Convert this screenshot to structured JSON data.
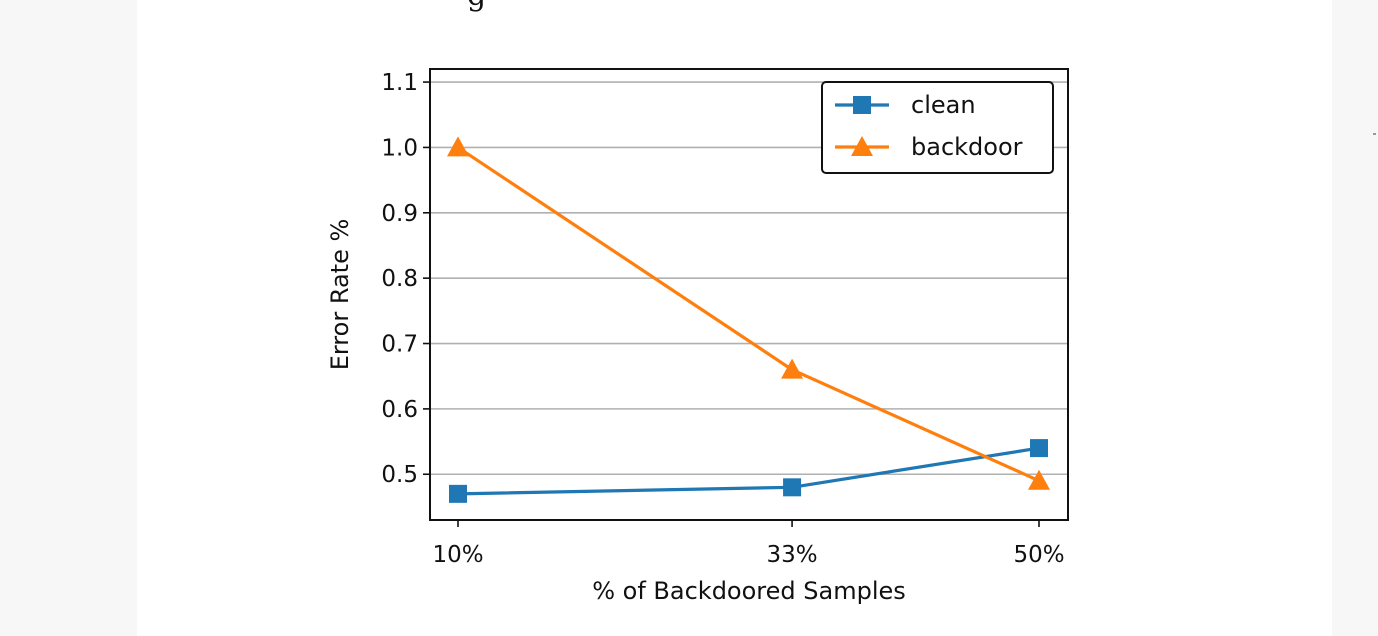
{
  "page": {
    "caption_fragment": "g",
    "colors": {
      "background": "#ffffff",
      "outer": "#f7f7f7",
      "grid": "#b0b0b0",
      "axis": "#111111"
    }
  },
  "chart_data": {
    "type": "line",
    "title": "",
    "xlabel": "% of Backdoored Samples",
    "ylabel": "Error Rate %",
    "categories": [
      "10%",
      "33%",
      "50%"
    ],
    "x": [
      10,
      33,
      50
    ],
    "ylim": [
      0.43,
      1.12
    ],
    "yticks": [
      0.5,
      0.6,
      0.7,
      0.8,
      0.9,
      1.0,
      1.1
    ],
    "ytick_labels": [
      "0.5",
      "0.6",
      "0.7",
      "0.8",
      "0.9",
      "1.0",
      "1.1"
    ],
    "grid": "horizontal",
    "legend_position": "top-right",
    "series": [
      {
        "name": "clean",
        "values": [
          0.47,
          0.48,
          0.54
        ],
        "color": "#1f77b4",
        "marker": "square"
      },
      {
        "name": "backdoor",
        "values": [
          1.0,
          0.66,
          0.49
        ],
        "color": "#ff7f0e",
        "marker": "triangle"
      }
    ]
  }
}
